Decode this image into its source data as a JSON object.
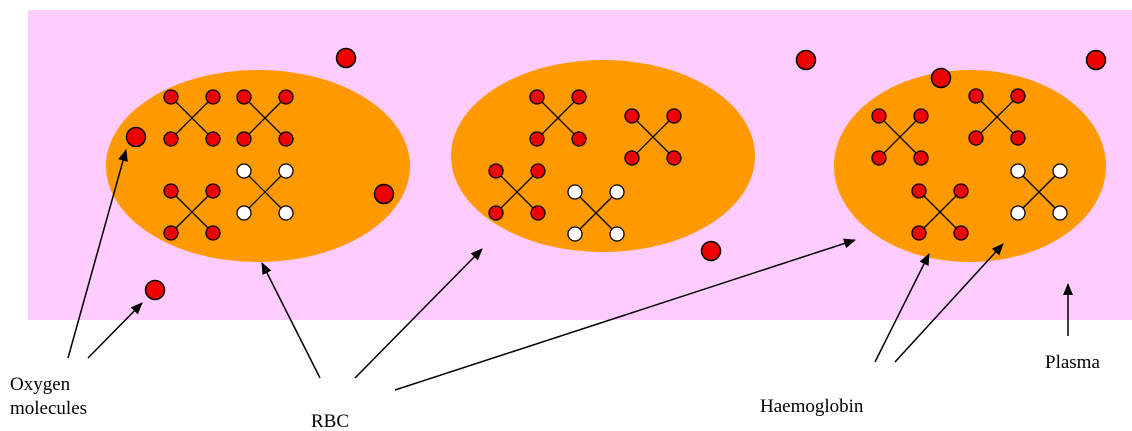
{
  "labels": {
    "oxygen_molecules": [
      "Oxygen",
      "molecules"
    ],
    "rbc": "RBC",
    "haemoglobin": "Haemoglobin",
    "plasma": "Plasma"
  }
}
